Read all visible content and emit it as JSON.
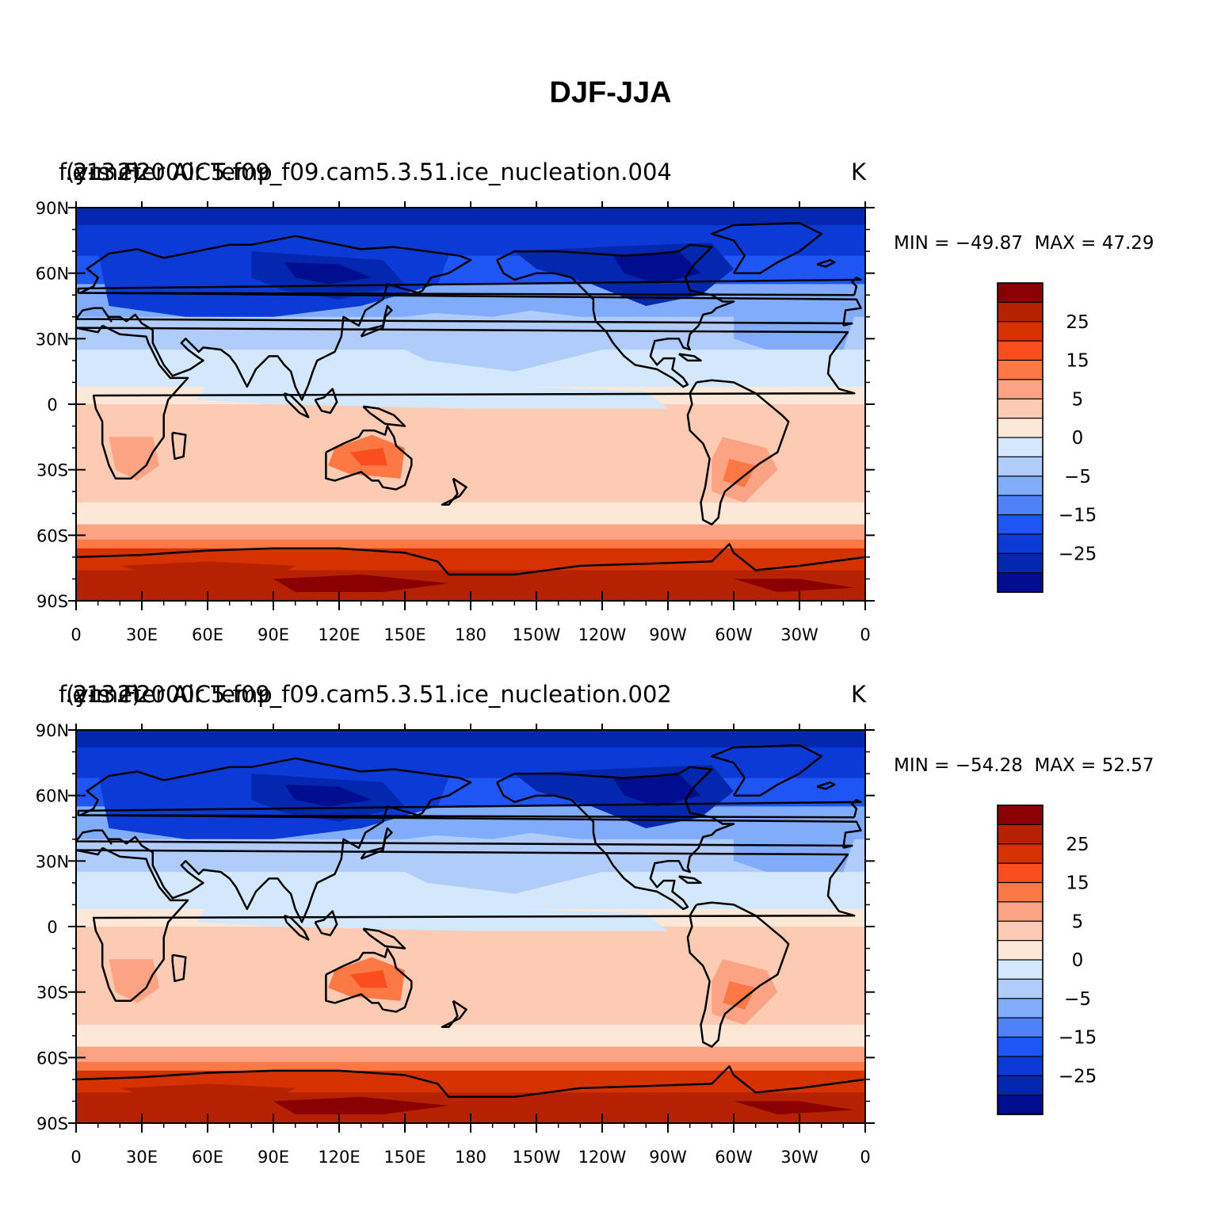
{
  "title": "DJF-JJA",
  "panels": [
    {
      "case_name": "f.e13.F2000C5.f09_f09.cam5.3.51.ice_nucleation.004",
      "years_label": "(yrs 2)",
      "variable_label": "2-meter Air Temp",
      "units": "K",
      "min_label": "MIN = −49.87",
      "max_label": "MAX =  47.29"
    },
    {
      "case_name": "f.e13.F2000C5.f09_f09.cam5.3.51.ice_nucleation.002",
      "years_label": "(yrs 2)",
      "variable_label": "2-meter Air Temp",
      "units": "K",
      "min_label": "MIN = −54.28",
      "max_label": "MAX =  52.57"
    }
  ],
  "lat_ticks": [
    "90N",
    "60N",
    "30N",
    "0",
    "30S",
    "60S",
    "90S"
  ],
  "lon_ticks": [
    "0",
    "30E",
    "60E",
    "90E",
    "120E",
    "150E",
    "180",
    "150W",
    "120W",
    "90W",
    "60W",
    "30W",
    "0"
  ],
  "colorbar": {
    "colors": [
      "#8b0000",
      "#b52202",
      "#d63200",
      "#fa4e1e",
      "#fc7845",
      "#fca384",
      "#fdcbb4",
      "#fde7d7",
      "#d4e8fd",
      "#b0ccfb",
      "#80acfb",
      "#4f81f9",
      "#1e56f5",
      "#0b3ad6",
      "#0427b0",
      "#000d8f"
    ],
    "labels": [
      "25",
      "15",
      "5",
      "0",
      "−5",
      "−15",
      "−25"
    ]
  }
}
